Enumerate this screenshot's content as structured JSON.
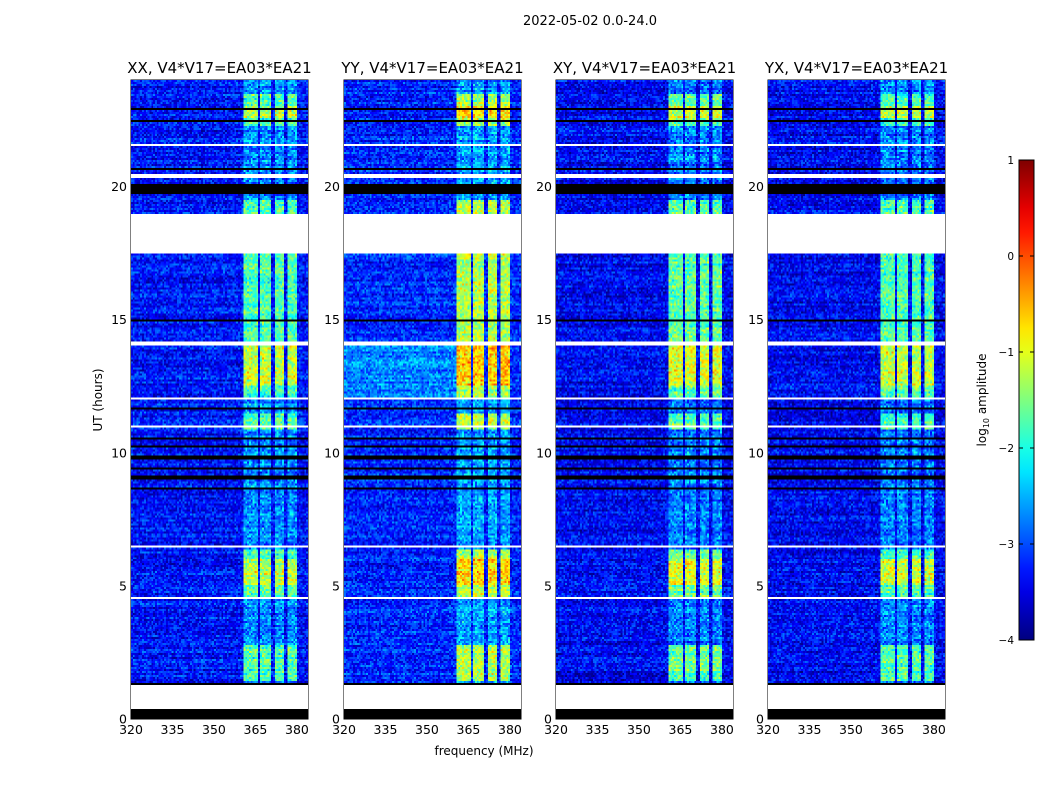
{
  "suptitle": "2022-05-02 0.0-24.0",
  "chart_data": {
    "type": "heatmap",
    "xlabel": "frequency (MHz)",
    "ylabel": "UT (hours)",
    "xlim": [
      320,
      384
    ],
    "ylim": [
      0,
      24
    ],
    "xticks": [
      320,
      335,
      350,
      365,
      380
    ],
    "yticks": [
      0,
      5,
      10,
      15,
      20
    ],
    "panels": [
      {
        "title": "XX, V4*V17=EA03*EA21",
        "background": -3.3,
        "band_gain": 1.3,
        "bg_boost": 0
      },
      {
        "title": "YY, V4*V17=EA03*EA21",
        "background": -3.2,
        "band_gain": 1.7,
        "bg_boost": 0.6
      },
      {
        "title": "XY, V4*V17=EA03*EA21",
        "background": -3.4,
        "band_gain": 1.5,
        "bg_boost": 0
      },
      {
        "title": "YX, V4*V17=EA03*EA21",
        "background": -3.4,
        "band_gain": 1.4,
        "bg_boost": 0
      }
    ],
    "rfi_channels_mhz": [
      [
        361,
        366
      ],
      [
        367,
        371
      ],
      [
        372,
        375.5
      ],
      [
        376.5,
        380
      ]
    ],
    "active_intervals_hours": [
      [
        1.4,
        2.8
      ],
      [
        4.6,
        6.4
      ],
      [
        10.9,
        11.5
      ],
      [
        12.1,
        14.0
      ],
      [
        14.2,
        17.5
      ],
      [
        19.0,
        19.5
      ],
      [
        22.3,
        23.5
      ]
    ],
    "strong_intervals_hours": [
      [
        5.0,
        6.0
      ],
      [
        12.5,
        14.0
      ],
      [
        22.6,
        23.0
      ]
    ],
    "flagged_intervals_hours": [
      [
        0.41,
        1.25
      ],
      [
        4.5,
        4.6
      ],
      [
        6.42,
        6.5
      ],
      [
        10.98,
        11.05
      ],
      [
        12.0,
        12.1
      ],
      [
        14.02,
        14.15
      ],
      [
        17.45,
        18.95
      ],
      [
        20.35,
        20.45
      ],
      [
        21.55,
        21.6
      ]
    ],
    "dead_intervals_hours": [
      [
        0.0,
        0.35
      ],
      [
        1.3,
        1.38
      ],
      [
        8.6,
        8.7
      ],
      [
        9.0,
        9.15
      ],
      [
        9.35,
        9.45
      ],
      [
        9.75,
        9.9
      ],
      [
        10.2,
        10.3
      ],
      [
        10.5,
        10.6
      ],
      [
        11.65,
        11.7
      ],
      [
        14.9,
        15.0
      ],
      [
        19.7,
        20.1
      ],
      [
        20.6,
        20.7
      ],
      [
        22.4,
        22.5
      ],
      [
        22.9,
        22.95
      ]
    ],
    "colorbar": {
      "label": "log10 amplitude",
      "range": [
        -4,
        1
      ],
      "ticks": [
        1,
        0,
        -1,
        -2,
        -3,
        -4
      ],
      "tick_labels": [
        "1",
        "0",
        "−1",
        "−2",
        "−3",
        "−4"
      ],
      "colormap": "jet"
    }
  }
}
